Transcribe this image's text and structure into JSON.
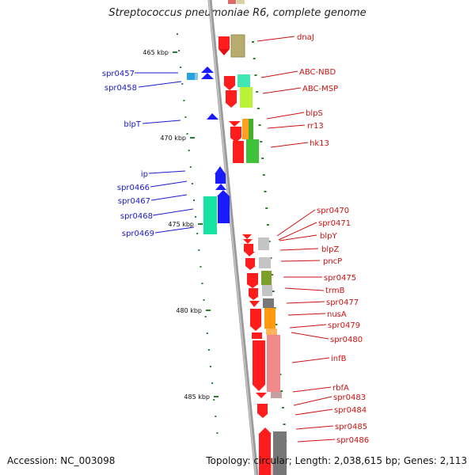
{
  "title": "Streptococcus pneumoniae R6, complete genome",
  "accession": "Accession: NC_003098",
  "topology": "Topology: circular; Length: 2,038,615 bp; Genes: 2,113",
  "colors": {
    "backbone": "#999999",
    "tick": "#2e7d2e",
    "left_label": "#1a1acc",
    "right_label": "#cc1111"
  },
  "scale_labels": [
    "465 kbp",
    "470 kbp",
    "475 kbp",
    "480 kbp",
    "485 kbp"
  ],
  "left_labels": [
    "spr0457",
    "spr0458",
    "blpT",
    "ip",
    "spr0466",
    "spr0467",
    "spr0468",
    "spr0469"
  ],
  "right_labels": [
    "dnaJ",
    "ABC-NBD",
    "ABC-MSP",
    "blpS",
    "rr13",
    "hk13",
    "spr0470",
    "spr0471",
    "blpY",
    "blpZ",
    "pncP",
    "spr0475",
    "trmB",
    "spr0477",
    "nusA",
    "spr0479",
    "spr0480",
    "infB",
    "rbfA",
    "spr0483",
    "spr0484",
    "spr0485",
    "spr0486"
  ]
}
